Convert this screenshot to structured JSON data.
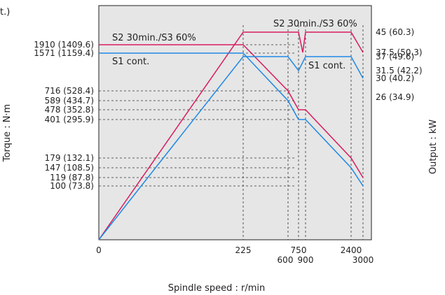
{
  "chart_data": {
    "type": "line",
    "title": "",
    "corner_fragment": "t.)",
    "xlabel": "Spindle speed : r/min",
    "ylabel_left": "Torque : N·m",
    "ylabel_right": "Output : kW",
    "grid": false,
    "x_ticks": [
      "0",
      "225",
      "750",
      "600",
      "900",
      "2400",
      "3000"
    ],
    "torque_ticks": [
      "1910 (1409.6)",
      "1571 (1159.4)",
      "716 (528.4)",
      "589 (434.7)",
      "478 (352.8)",
      "401 (295.9)",
      "179 (132.1)",
      "147 (108.5)",
      "119 (87.8)",
      "100 (73.8)"
    ],
    "output_ticks": [
      "45 (60.3)",
      "37.5 (50.3)",
      "37 (49.6)",
      "31.5 (42.2)",
      "30 (40.2)",
      "26 (34.9)"
    ],
    "series": [
      {
        "name": "S2 30min./S3 60%",
        "color": "#d81b60",
        "output_label": "S2 30min./S3 60%",
        "torque_label": "S2 30min./S3 60%",
        "output_kw": [
          [
            0,
            0
          ],
          [
            225,
            45
          ],
          [
            750,
            45
          ],
          [
            780,
            37.5
          ],
          [
            800,
            45
          ],
          [
            2400,
            45
          ],
          [
            3000,
            37.5
          ]
        ],
        "torque_nm": [
          [
            0,
            1910
          ],
          [
            225,
            1910
          ],
          [
            600,
            716
          ],
          [
            750,
            478
          ],
          [
            900,
            478
          ],
          [
            2400,
            179
          ],
          [
            3000,
            119
          ]
        ]
      },
      {
        "name": "S1 cont.",
        "color": "#1e88e5",
        "output_label": "S1 cont.",
        "torque_label": "S1 cont.",
        "output_kw": [
          [
            0,
            0
          ],
          [
            225,
            37
          ],
          [
            600,
            37
          ],
          [
            750,
            31.5
          ],
          [
            800,
            37
          ],
          [
            2400,
            37
          ],
          [
            3000,
            30
          ]
        ],
        "torque_nm": [
          [
            0,
            1571
          ],
          [
            225,
            1571
          ],
          [
            600,
            589
          ],
          [
            750,
            401
          ],
          [
            900,
            401
          ],
          [
            2400,
            147
          ],
          [
            3000,
            100
          ]
        ]
      }
    ]
  }
}
